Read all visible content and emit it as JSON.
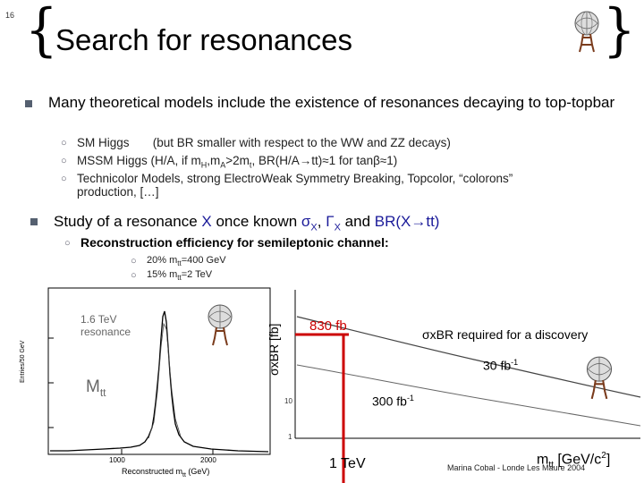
{
  "slide_number": "16",
  "title": "Search for resonances",
  "bullet1": {
    "text": "Many theoretical models include the existence of resonances decaying to top-topbar",
    "subitems": [
      {
        "label": "SM Higgs",
        "note": "(but BR smaller with respect to the WW and  ZZ decays)"
      },
      {
        "label": "MSSM Higgs (H/A, if m",
        "sub1": "H",
        "mid": ",m",
        "sub2": "A",
        "rest": ">2m",
        "sub3": "t",
        "rest2": ", BR(H/A→tt)≈1 for tanβ≈1)"
      },
      {
        "label": "Technicolor Models, strong ElectroWeak Symmetry Breaking, Topcolor, “colorons” production, […]"
      }
    ]
  },
  "bullet2": {
    "prefix": "Study of a resonance ",
    "x": "X",
    "middle": "  once known ",
    "sigma": "σ",
    "sigma_sub": "X",
    "comma": ", ",
    "gamma": "Γ",
    "gamma_sub": "X",
    "and": "  and  ",
    "br": "BR(X→tt)"
  },
  "reconstruction": "Reconstruction efficiency for semileptonic channel:",
  "efficiencies": [
    {
      "pre": "20% m",
      "sub": "tt",
      "post": "=400 GeV"
    },
    {
      "pre": "15% m",
      "sub": "tt",
      "post": "=2 TeV"
    }
  ],
  "plot_left": {
    "resonance_label": "1.6 TeV resonance",
    "mass_label": "M",
    "mass_sub": "tt",
    "ylabel": "Entries/50 GeV",
    "xlabel": "Reconstructed  m",
    "xlabel_sub": "tt",
    "xlabel_unit": " (GeV)",
    "ticks_x": [
      "1000",
      "2000"
    ]
  },
  "plot_right": {
    "ylabel": "σxBR [fb]",
    "label_830": "830 fb",
    "label_required": "σxBR required for a discovery",
    "label_30": "30 fb",
    "label_30_sup": "-1",
    "label_300": "300 fb",
    "label_300_sup": "-1",
    "label_1tev": "1 TeV",
    "xlabel": "m",
    "xlabel_sub": "tt",
    "xlabel_unit": " [GeV/c",
    "xlabel_sup": "2",
    "xlabel_end": "]",
    "ticks_y": [
      "10",
      "1"
    ]
  },
  "footer": "Marina Cobal - Londe Les Maure 2004",
  "colors": {
    "accent_red": "#cc0000",
    "bullet": "#556070"
  }
}
